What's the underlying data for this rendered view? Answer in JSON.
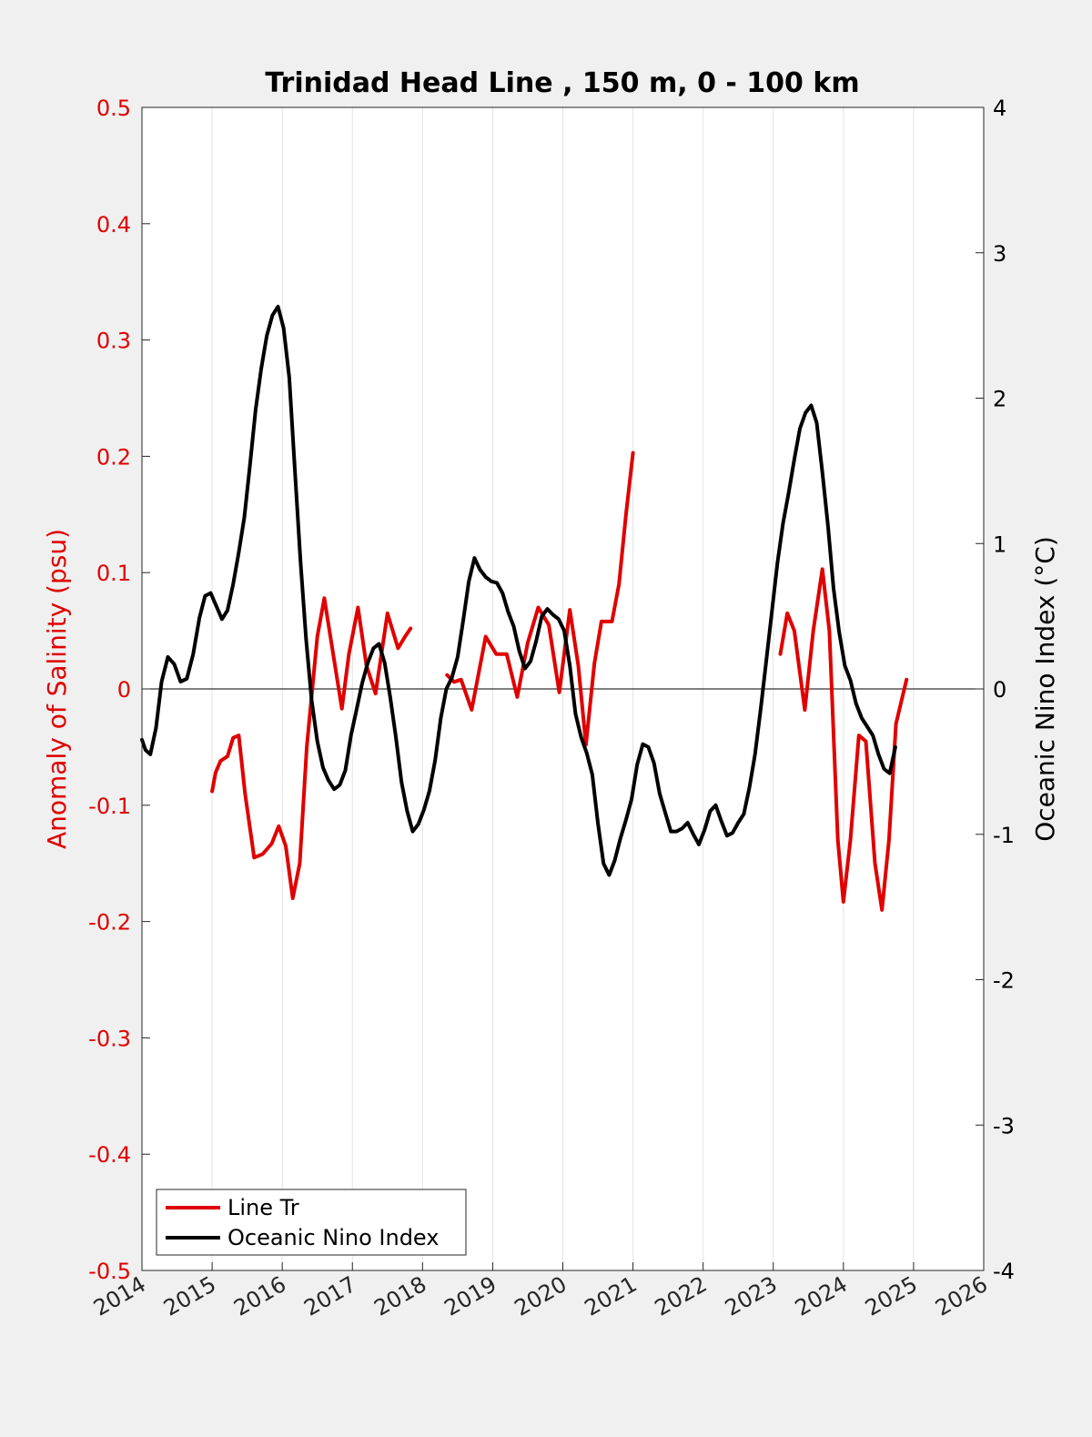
{
  "chart_data": {
    "type": "line",
    "title": "Trinidad Head Line , 150 m, 0 - 100 km",
    "xlim": [
      2014,
      2026
    ],
    "x_ticks": [
      "2014",
      "2015",
      "2016",
      "2017",
      "2018",
      "2019",
      "2020",
      "2021",
      "2022",
      "2023",
      "2024",
      "2025",
      "2026"
    ],
    "x_grid": true,
    "y_left": {
      "label": "Anomaly of Salinity (psu)",
      "lim": [
        -0.5,
        0.5
      ],
      "ticks": [
        "-0.5",
        "-0.4",
        "-0.3",
        "-0.2",
        "-0.1",
        "0",
        "0.1",
        "0.2",
        "0.3",
        "0.4",
        "0.5"
      ],
      "color": "#e00000"
    },
    "y_right": {
      "label": "Oceanic Nino Index (°C)",
      "lim": [
        -4,
        4
      ],
      "ticks": [
        "-4",
        "-3",
        "-2",
        "-1",
        "0",
        "1",
        "2",
        "3",
        "4"
      ],
      "color": "#000000"
    },
    "legend": {
      "position": "bottom-left",
      "entries": [
        "Line Tr",
        "Oceanic Nino Index"
      ]
    },
    "series": [
      {
        "name": "Line Tr",
        "axis": "left",
        "color": "#e00000",
        "segments": [
          [
            [
              2015.0,
              -0.088
            ],
            [
              2015.05,
              -0.072
            ],
            [
              2015.12,
              -0.062
            ],
            [
              2015.22,
              -0.058
            ],
            [
              2015.3,
              -0.042
            ],
            [
              2015.38,
              -0.04
            ],
            [
              2015.47,
              -0.09
            ],
            [
              2015.6,
              -0.145
            ],
            [
              2015.72,
              -0.142
            ],
            [
              2015.85,
              -0.133
            ],
            [
              2015.95,
              -0.118
            ],
            [
              2016.05,
              -0.135
            ],
            [
              2016.15,
              -0.18
            ],
            [
              2016.25,
              -0.15
            ],
            [
              2016.35,
              -0.05
            ],
            [
              2016.5,
              0.045
            ],
            [
              2016.6,
              0.078
            ],
            [
              2016.7,
              0.04
            ],
            [
              2016.85,
              -0.017
            ],
            [
              2016.95,
              0.03
            ],
            [
              2017.08,
              0.07
            ],
            [
              2017.2,
              0.02
            ],
            [
              2017.33,
              -0.004
            ],
            [
              2017.5,
              0.065
            ],
            [
              2017.65,
              0.035
            ],
            [
              2017.75,
              0.045
            ],
            [
              2017.83,
              0.052
            ]
          ],
          [
            [
              2018.35,
              0.012
            ],
            [
              2018.45,
              0.006
            ],
            [
              2018.55,
              0.008
            ],
            [
              2018.7,
              -0.018
            ],
            [
              2018.9,
              0.045
            ],
            [
              2019.05,
              0.03
            ],
            [
              2019.2,
              0.03
            ],
            [
              2019.35,
              -0.007
            ],
            [
              2019.5,
              0.04
            ],
            [
              2019.65,
              0.07
            ],
            [
              2019.8,
              0.055
            ],
            [
              2019.95,
              -0.003
            ],
            [
              2020.1,
              0.068
            ],
            [
              2020.22,
              0.02
            ],
            [
              2020.33,
              -0.048
            ],
            [
              2020.45,
              0.022
            ],
            [
              2020.55,
              0.058
            ],
            [
              2020.7,
              0.058
            ],
            [
              2020.8,
              0.09
            ],
            [
              2020.9,
              0.15
            ],
            [
              2021.0,
              0.203
            ]
          ],
          [
            [
              2023.1,
              0.03
            ],
            [
              2023.2,
              0.065
            ],
            [
              2023.3,
              0.05
            ],
            [
              2023.45,
              -0.018
            ],
            [
              2023.57,
              0.05
            ],
            [
              2023.7,
              0.103
            ],
            [
              2023.8,
              0.05
            ],
            [
              2023.92,
              -0.13
            ],
            [
              2024.0,
              -0.183
            ],
            [
              2024.1,
              -0.13
            ],
            [
              2024.22,
              -0.04
            ],
            [
              2024.32,
              -0.045
            ],
            [
              2024.45,
              -0.15
            ],
            [
              2024.55,
              -0.19
            ],
            [
              2024.65,
              -0.13
            ],
            [
              2024.75,
              -0.03
            ],
            [
              2024.9,
              0.008
            ]
          ]
        ]
      },
      {
        "name": "Oceanic Nino Index",
        "axis": "right",
        "color": "#000000",
        "segments": [
          [
            [
              2014.0,
              -0.35
            ],
            [
              2014.05,
              -0.42
            ],
            [
              2014.12,
              -0.45
            ],
            [
              2014.2,
              -0.27
            ],
            [
              2014.28,
              0.05
            ],
            [
              2014.37,
              0.22
            ],
            [
              2014.46,
              0.17
            ],
            [
              2014.55,
              0.05
            ],
            [
              2014.64,
              0.07
            ],
            [
              2014.73,
              0.24
            ],
            [
              2014.82,
              0.49
            ],
            [
              2014.9,
              0.64
            ],
            [
              2014.98,
              0.66
            ],
            [
              2015.06,
              0.57
            ],
            [
              2015.14,
              0.48
            ],
            [
              2015.22,
              0.54
            ],
            [
              2015.3,
              0.72
            ],
            [
              2015.38,
              0.94
            ],
            [
              2015.46,
              1.18
            ],
            [
              2015.54,
              1.54
            ],
            [
              2015.62,
              1.92
            ],
            [
              2015.7,
              2.2
            ],
            [
              2015.78,
              2.43
            ],
            [
              2015.86,
              2.57
            ],
            [
              2015.94,
              2.63
            ],
            [
              2016.02,
              2.48
            ],
            [
              2016.1,
              2.14
            ],
            [
              2016.18,
              1.51
            ],
            [
              2016.26,
              0.88
            ],
            [
              2016.34,
              0.34
            ],
            [
              2016.42,
              -0.08
            ],
            [
              2016.5,
              -0.36
            ],
            [
              2016.58,
              -0.54
            ],
            [
              2016.66,
              -0.63
            ],
            [
              2016.74,
              -0.69
            ],
            [
              2016.82,
              -0.66
            ],
            [
              2016.9,
              -0.56
            ],
            [
              2016.98,
              -0.32
            ],
            [
              2017.06,
              -0.14
            ],
            [
              2017.14,
              0.04
            ],
            [
              2017.22,
              0.18
            ],
            [
              2017.3,
              0.28
            ],
            [
              2017.38,
              0.31
            ],
            [
              2017.46,
              0.18
            ],
            [
              2017.54,
              -0.06
            ],
            [
              2017.62,
              -0.33
            ],
            [
              2017.7,
              -0.64
            ],
            [
              2017.78,
              -0.84
            ],
            [
              2017.86,
              -0.98
            ],
            [
              2017.94,
              -0.93
            ],
            [
              2018.02,
              -0.83
            ],
            [
              2018.1,
              -0.7
            ],
            [
              2018.18,
              -0.49
            ],
            [
              2018.26,
              -0.2
            ],
            [
              2018.34,
              0.0
            ],
            [
              2018.42,
              0.08
            ],
            [
              2018.5,
              0.22
            ],
            [
              2018.58,
              0.47
            ],
            [
              2018.66,
              0.74
            ],
            [
              2018.74,
              0.9
            ],
            [
              2018.82,
              0.82
            ],
            [
              2018.9,
              0.77
            ],
            [
              2018.98,
              0.74
            ],
            [
              2019.06,
              0.73
            ],
            [
              2019.14,
              0.66
            ],
            [
              2019.22,
              0.53
            ],
            [
              2019.3,
              0.43
            ],
            [
              2019.38,
              0.26
            ],
            [
              2019.46,
              0.14
            ],
            [
              2019.54,
              0.19
            ],
            [
              2019.62,
              0.33
            ],
            [
              2019.7,
              0.5
            ],
            [
              2019.78,
              0.55
            ],
            [
              2019.86,
              0.51
            ],
            [
              2019.94,
              0.48
            ],
            [
              2020.02,
              0.4
            ],
            [
              2020.1,
              0.16
            ],
            [
              2020.18,
              -0.17
            ],
            [
              2020.26,
              -0.33
            ],
            [
              2020.34,
              -0.44
            ],
            [
              2020.42,
              -0.59
            ],
            [
              2020.5,
              -0.92
            ],
            [
              2020.58,
              -1.2
            ],
            [
              2020.66,
              -1.28
            ],
            [
              2020.74,
              -1.18
            ],
            [
              2020.82,
              -1.03
            ],
            [
              2020.9,
              -0.9
            ],
            [
              2020.98,
              -0.76
            ],
            [
              2021.06,
              -0.52
            ],
            [
              2021.14,
              -0.38
            ],
            [
              2021.22,
              -0.4
            ],
            [
              2021.3,
              -0.51
            ],
            [
              2021.38,
              -0.72
            ],
            [
              2021.46,
              -0.85
            ],
            [
              2021.54,
              -0.98
            ],
            [
              2021.62,
              -0.98
            ],
            [
              2021.7,
              -0.96
            ],
            [
              2021.78,
              -0.92
            ],
            [
              2021.86,
              -1.0
            ],
            [
              2021.94,
              -1.07
            ],
            [
              2022.02,
              -0.97
            ],
            [
              2022.1,
              -0.84
            ],
            [
              2022.18,
              -0.8
            ],
            [
              2022.26,
              -0.91
            ],
            [
              2022.34,
              -1.01
            ],
            [
              2022.42,
              -0.99
            ],
            [
              2022.5,
              -0.92
            ],
            [
              2022.58,
              -0.86
            ],
            [
              2022.66,
              -0.68
            ],
            [
              2022.74,
              -0.45
            ],
            [
              2022.82,
              -0.14
            ],
            [
              2022.9,
              0.19
            ],
            [
              2022.98,
              0.53
            ],
            [
              2023.06,
              0.87
            ],
            [
              2023.14,
              1.14
            ],
            [
              2023.22,
              1.35
            ],
            [
              2023.3,
              1.58
            ],
            [
              2023.38,
              1.79
            ],
            [
              2023.46,
              1.9
            ],
            [
              2023.54,
              1.95
            ],
            [
              2023.62,
              1.83
            ],
            [
              2023.7,
              1.49
            ],
            [
              2023.78,
              1.12
            ],
            [
              2023.86,
              0.69
            ],
            [
              2023.94,
              0.39
            ],
            [
              2024.02,
              0.16
            ],
            [
              2024.1,
              0.06
            ],
            [
              2024.18,
              -0.1
            ],
            [
              2024.26,
              -0.2
            ],
            [
              2024.34,
              -0.26
            ],
            [
              2024.42,
              -0.32
            ],
            [
              2024.5,
              -0.45
            ],
            [
              2024.58,
              -0.55
            ],
            [
              2024.66,
              -0.58
            ],
            [
              2024.74,
              -0.4
            ]
          ]
        ]
      }
    ]
  }
}
